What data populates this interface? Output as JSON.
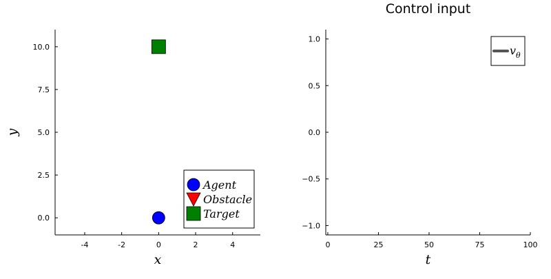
{
  "chart_data": [
    {
      "type": "scatter",
      "title": "",
      "xlabel": "x",
      "ylabel": "y",
      "xlim": [
        -5.6,
        5.5
      ],
      "ylim": [
        -1.0,
        11.0
      ],
      "xticks": [
        -4,
        -2,
        0,
        2,
        4
      ],
      "yticks": [
        0.0,
        2.5,
        5.0,
        7.5,
        10.0
      ],
      "ytick_labels": [
        "0.0",
        "2.5",
        "5.0",
        "7.5",
        "10.0"
      ],
      "grid": false,
      "legend_position": "bottom-right",
      "series": [
        {
          "name": "Agent",
          "marker": "circle",
          "color": "#0000ff",
          "x": [
            0
          ],
          "y": [
            0
          ]
        },
        {
          "name": "Obstacle",
          "marker": "triangle-down",
          "color": "#ff0000",
          "x": [],
          "y": []
        },
        {
          "name": "Target",
          "marker": "square",
          "color": "#008000",
          "x": [
            0
          ],
          "y": [
            10
          ]
        }
      ]
    },
    {
      "type": "line",
      "title": "Control input",
      "xlabel": "t",
      "ylabel": "",
      "xlim": [
        -1,
        100
      ],
      "ylim": [
        -1.1,
        1.1
      ],
      "xticks": [
        0,
        25,
        50,
        75,
        100
      ],
      "yticks": [
        -1.0,
        -0.5,
        0.0,
        0.5,
        1.0
      ],
      "ytick_labels": [
        "−1.0",
        "−0.5",
        "0.0",
        "0.5",
        "1.0"
      ],
      "grid": false,
      "legend_position": "top-right",
      "series": [
        {
          "name": "v",
          "subscript": "θ",
          "color": "#555555",
          "x": [],
          "y": []
        }
      ]
    }
  ]
}
